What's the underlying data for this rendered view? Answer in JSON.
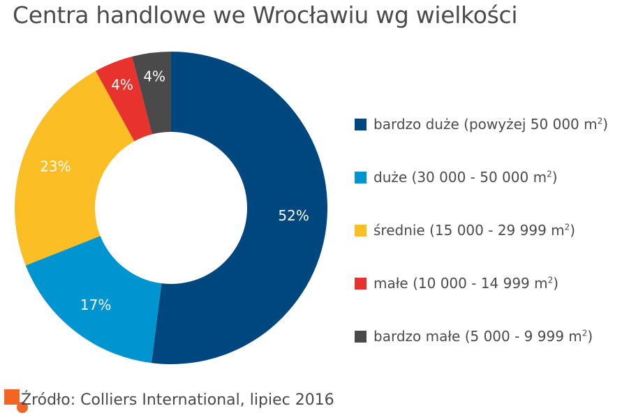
{
  "title": "Centra handlowe we Wrocławiu wg wielkości",
  "source": "Źródło: Colliers International, lipiec 2016",
  "colors": {
    "bardzo_duze": "#00467f",
    "duze": "#0094d1",
    "srednie": "#fbbf25",
    "male": "#e7322e",
    "bardzo_male": "#4a4a4a"
  },
  "chart_data": {
    "type": "pie",
    "title": "Centra handlowe we Wrocławiu wg wielkości",
    "categories": [
      "bardzo duże (powyżej 50 000 m²)",
      "duże (30 000 - 50 000 m²)",
      "średnie (15 000 - 29 999 m²)",
      "małe (10 000 - 14 999 m²)",
      "bardzo małe (5 000 - 9 999 m²)"
    ],
    "values": [
      52,
      17,
      23,
      4,
      4
    ],
    "labels": [
      "52%",
      "17%",
      "23%",
      "4%",
      "4%"
    ],
    "colors": [
      "#00467f",
      "#0094d1",
      "#fbbf25",
      "#e7322e",
      "#4a4a4a"
    ],
    "legend_labels": [
      {
        "text": "bardzo duże (powyżej 50 000 m",
        "sup": "2",
        "close": ")"
      },
      {
        "text": "duże (30 000 - 50 000 m",
        "sup": "2",
        "close": ")"
      },
      {
        "text": "średnie (15 000 - 29 999 m",
        "sup": "2",
        "close": ")"
      },
      {
        "text": "małe (10 000 - 14 999 m",
        "sup": "2",
        "close": ")"
      },
      {
        "text": "bardzo małe (5 000 - 9 999 m",
        "sup": "2",
        "close": ")"
      }
    ],
    "donut": true,
    "legend_position": "right"
  }
}
